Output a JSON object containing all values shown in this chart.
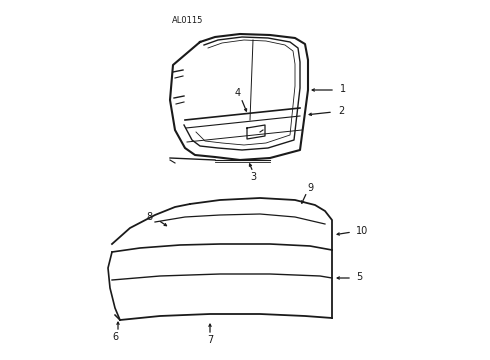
{
  "bg_color": "#ffffff",
  "line_color": "#1a1a1a",
  "text_color": "#1a1a1a",
  "diagram_label": "AL0115",
  "fig_w": 4.9,
  "fig_h": 3.6,
  "dpi": 100
}
